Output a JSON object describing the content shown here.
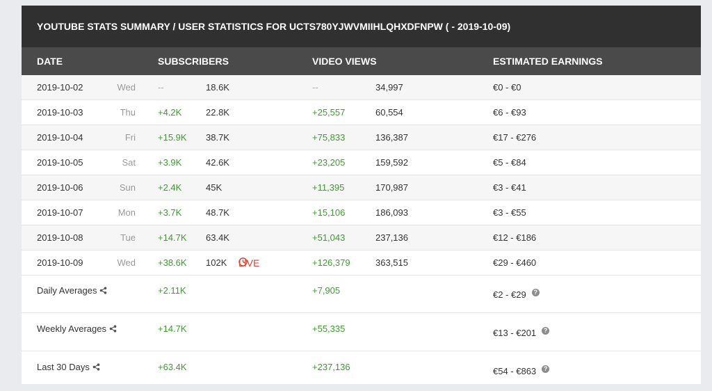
{
  "title": "YOUTUBE STATS SUMMARY / USER STATISTICS FOR UCTS780YJWVMIIHLQHXDFNPW ( - 2019-10-09)",
  "headers": {
    "date": "DATE",
    "subscribers": "SUBSCRIBERS",
    "video_views": "VIDEO VIEWS",
    "earnings": "ESTIMATED EARNINGS"
  },
  "live_label": "LIVE",
  "rows": [
    {
      "date": "2019-10-02",
      "day": "Wed",
      "sub_delta": "--",
      "subs": "18.6K",
      "view_delta": "--",
      "views": "34,997",
      "earnings": "€0  -  €0"
    },
    {
      "date": "2019-10-03",
      "day": "Thu",
      "sub_delta": "+4.2K",
      "subs": "22.8K",
      "view_delta": "+25,557",
      "views": "60,554",
      "earnings": "€6  -  €93"
    },
    {
      "date": "2019-10-04",
      "day": "Fri",
      "sub_delta": "+15.9K",
      "subs": "38.7K",
      "view_delta": "+75,833",
      "views": "136,387",
      "earnings": "€17  -  €276"
    },
    {
      "date": "2019-10-05",
      "day": "Sat",
      "sub_delta": "+3.9K",
      "subs": "42.6K",
      "view_delta": "+23,205",
      "views": "159,592",
      "earnings": "€5  -  €84"
    },
    {
      "date": "2019-10-06",
      "day": "Sun",
      "sub_delta": "+2.4K",
      "subs": "45K",
      "view_delta": "+11,395",
      "views": "170,987",
      "earnings": "€3  -  €41"
    },
    {
      "date": "2019-10-07",
      "day": "Mon",
      "sub_delta": "+3.7K",
      "subs": "48.7K",
      "view_delta": "+15,106",
      "views": "186,093",
      "earnings": "€3  -  €55"
    },
    {
      "date": "2019-10-08",
      "day": "Tue",
      "sub_delta": "+14.7K",
      "subs": "63.4K",
      "view_delta": "+51,043",
      "views": "237,136",
      "earnings": "€12  -  €186"
    },
    {
      "date": "2019-10-09",
      "day": "Wed",
      "sub_delta": "+38.6K",
      "subs": "102K",
      "view_delta": "+126,379",
      "views": "363,515",
      "earnings": "€29  -  €460"
    }
  ],
  "summaries": [
    {
      "label": "Daily Averages",
      "sub": "+2.11K",
      "views": "+7,905",
      "earnings": "€2  -  €29"
    },
    {
      "label": "Weekly Averages",
      "sub": "+14.7K",
      "views": "+55,335",
      "earnings": "€13  -  €201"
    },
    {
      "label": "Last 30 Days",
      "sub": "+63.4K",
      "views": "+237,136",
      "earnings": "€54  -  €863"
    }
  ],
  "colors": {
    "positive": "#3c9c2e",
    "live": "#d84332",
    "title_bg": "#303030",
    "header_bg": "#4a4a4a"
  },
  "icons": {
    "share": "share-icon",
    "help": "question-circle-icon",
    "live": "clock-circle-icon"
  }
}
